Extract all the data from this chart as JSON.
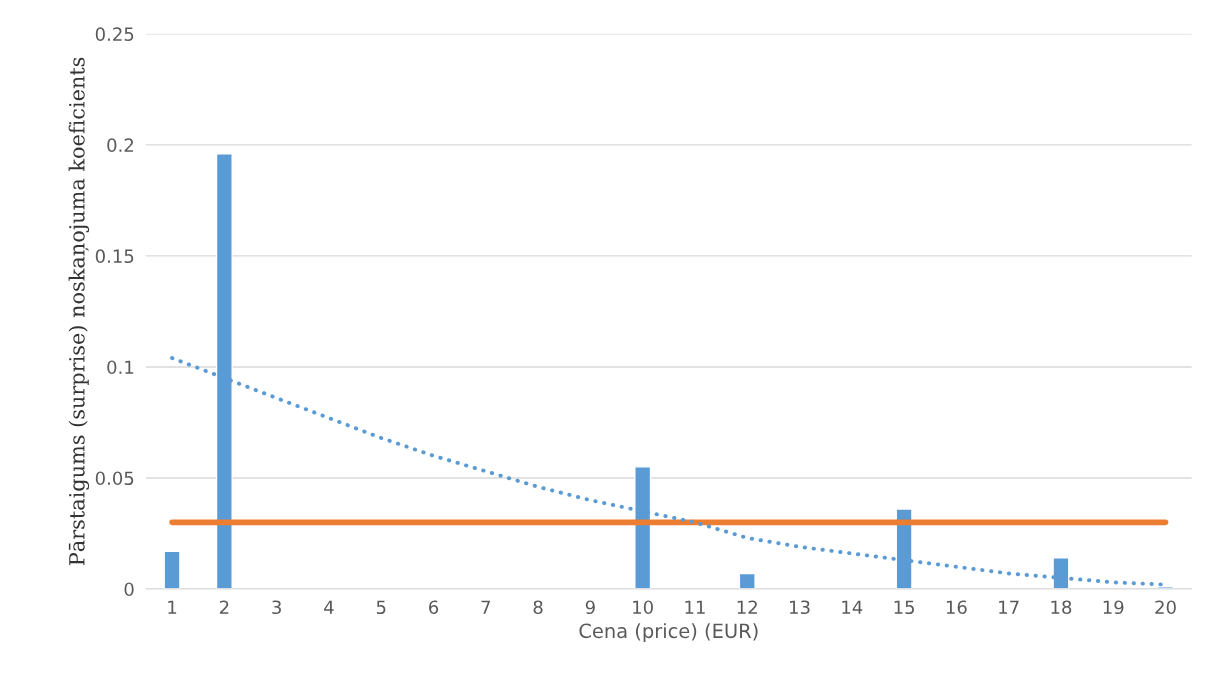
{
  "chart_data": {
    "type": "bar",
    "xlabel": "Cena (price) (EUR)",
    "ylabel": "Pārstaigums (surprise) noskaņojuma koeficients",
    "categories": [
      "1",
      "2",
      "3",
      "4",
      "5",
      "6",
      "7",
      "8",
      "9",
      "10",
      "11",
      "12",
      "13",
      "14",
      "15",
      "16",
      "17",
      "18",
      "19",
      "20"
    ],
    "series": [
      {
        "color": "#5b9bd5",
        "values": [
          0.017,
          0.196,
          null,
          null,
          null,
          null,
          null,
          null,
          null,
          0.055,
          null,
          0.007,
          null,
          null,
          0.036,
          null,
          null,
          0.014,
          null,
          0.001
        ]
      },
      {
        "type": "line",
        "color": "#ed7d31",
        "line_style": "solid",
        "values": [
          0.03,
          0.03,
          0.03,
          0.03,
          0.03,
          0.03,
          0.03,
          0.03,
          0.03,
          0.03,
          0.03,
          0.03,
          0.03,
          0.03,
          0.03,
          0.03,
          0.03,
          0.03,
          0.03,
          0.03
        ]
      },
      {
        "type": "line",
        "color": "#5b9bd5",
        "line_style": "dotted",
        "values": [
          0.104,
          0.095,
          0.086,
          0.077,
          0.068,
          0.06,
          0.053,
          0.046,
          0.04,
          0.035,
          0.03,
          0.023,
          0.019,
          0.016,
          0.013,
          0.01,
          0.007,
          0.005,
          0.003,
          0.002
        ]
      }
    ],
    "ylim": [
      0,
      0.25
    ],
    "yticks": [
      0,
      0.05,
      0.1,
      0.15,
      0.2,
      0.25
    ],
    "grid": "y",
    "legend": false
  }
}
